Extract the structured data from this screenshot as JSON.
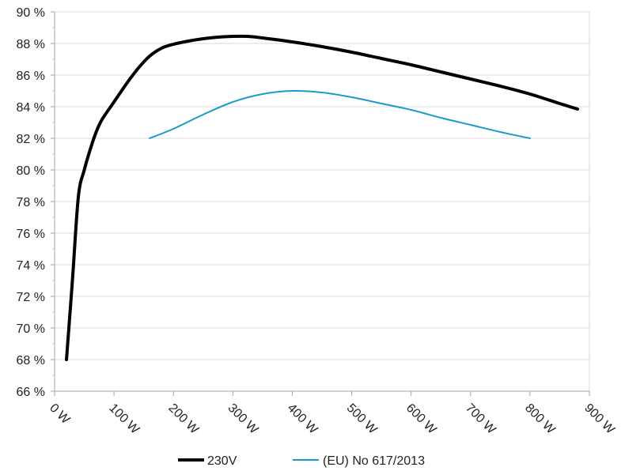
{
  "chart_data": {
    "type": "line",
    "title": "",
    "xlabel": "",
    "ylabel": "",
    "xlim": [
      0,
      900
    ],
    "ylim": [
      66,
      90
    ],
    "x_tick_values": [
      0,
      100,
      200,
      300,
      400,
      500,
      600,
      700,
      800,
      900
    ],
    "x_tick_labels": [
      "0 W",
      "100 W",
      "200 W",
      "300 W",
      "400 W",
      "500 W",
      "600 W",
      "700 W",
      "800 W",
      "900 W"
    ],
    "y_tick_values": [
      66,
      68,
      70,
      72,
      74,
      76,
      78,
      80,
      82,
      84,
      86,
      88,
      90
    ],
    "y_tick_labels": [
      "66 %",
      "68 %",
      "70 %",
      "72 %",
      "74 %",
      "76 %",
      "78 %",
      "80 %",
      "82 %",
      "84 %",
      "86 %",
      "88 %",
      "90 %"
    ],
    "grid": "horizontal",
    "legend_position": "bottom",
    "series": [
      {
        "name": "230V",
        "color": "#000000",
        "x": [
          20,
          30,
          40,
          50,
          60,
          70,
          80,
          100,
          120,
          140,
          160,
          180,
          200,
          225,
          250,
          275,
          300,
          325,
          350,
          400,
          450,
          500,
          550,
          600,
          650,
          700,
          750,
          800,
          850,
          880
        ],
        "y": [
          68.0,
          73.0,
          78.3,
          80.0,
          81.3,
          82.4,
          83.2,
          84.3,
          85.4,
          86.4,
          87.2,
          87.7,
          87.95,
          88.15,
          88.3,
          88.4,
          88.45,
          88.45,
          88.35,
          88.1,
          87.8,
          87.45,
          87.05,
          86.65,
          86.2,
          85.75,
          85.3,
          84.8,
          84.2,
          83.85
        ]
      },
      {
        "name": "(EU) No 617/2013",
        "color": "#1a9bc9",
        "x": [
          160,
          200,
          250,
          300,
          350,
          400,
          450,
          500,
          550,
          600,
          650,
          700,
          750,
          800
        ],
        "y": [
          82.0,
          82.6,
          83.5,
          84.3,
          84.8,
          85.0,
          84.9,
          84.6,
          84.2,
          83.8,
          83.3,
          82.85,
          82.4,
          82.0
        ]
      }
    ]
  }
}
